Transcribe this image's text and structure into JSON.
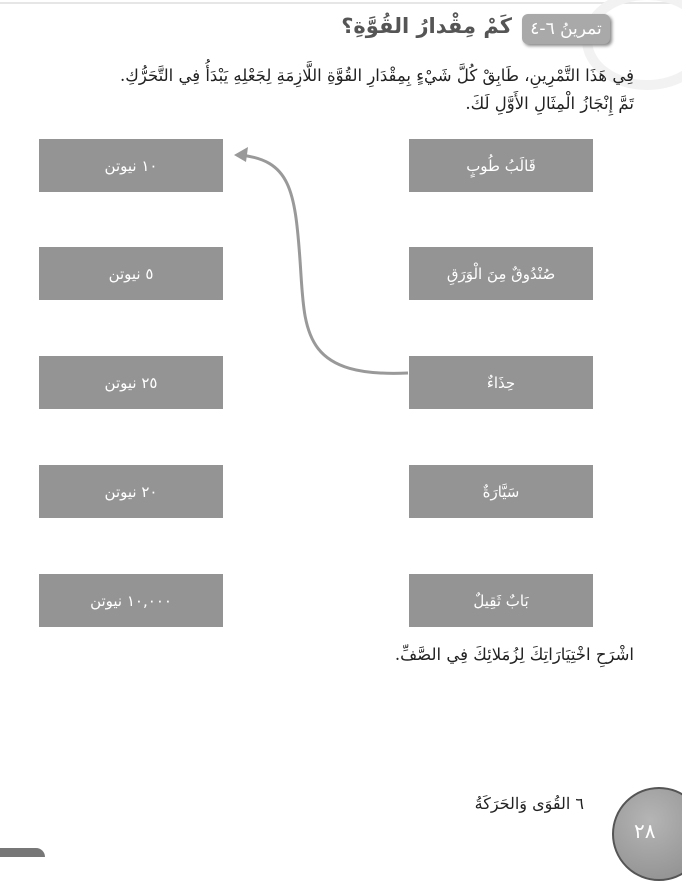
{
  "header": {
    "exercise_label": "تمرينُ ٦-٤",
    "title": "كَمْ مِقْدارُ القُوَّةِ؟"
  },
  "instructions": [
    "فِي هَذَا التَّمْرِينِ، طَابِقْ كُلَّ شَيْءٍ بِمِقْدَارِ القُوَّةِ اللَّازِمَةِ لِجَعْلِهِ يَبْدَأُ فِي التَّحَرُّكِ.",
    "تَمَّ إِنْجَازُ الْمِثَالِ الأَوَّلِ لَكَ."
  ],
  "objects": [
    "قَالَبُ طُوبٍ",
    "صُنْدُوقٌ مِنَ الْوَرَقِ",
    "حِذَاءٌ",
    "سَيَّارَةٌ",
    "بَابٌ ثَقِيلٌ"
  ],
  "forces": [
    "١٠ نيوتن",
    "٥ نيوتن",
    "٢٥ نيوتن",
    "٢٠ نيوتن",
    "١٠,٠٠٠ نيوتن"
  ],
  "example_match": {
    "object": "حِذَاءٌ",
    "force": "١٠ نيوتن"
  },
  "footer_prompt": "اشْرَحِ اخْتِيَارَاتِكَ لِزُمَلائِكَ فِي الصَّفِّ.",
  "footer": {
    "chapter": "٦  القُوَى وَالحَرَكَةُ",
    "page_number": "٢٨"
  }
}
